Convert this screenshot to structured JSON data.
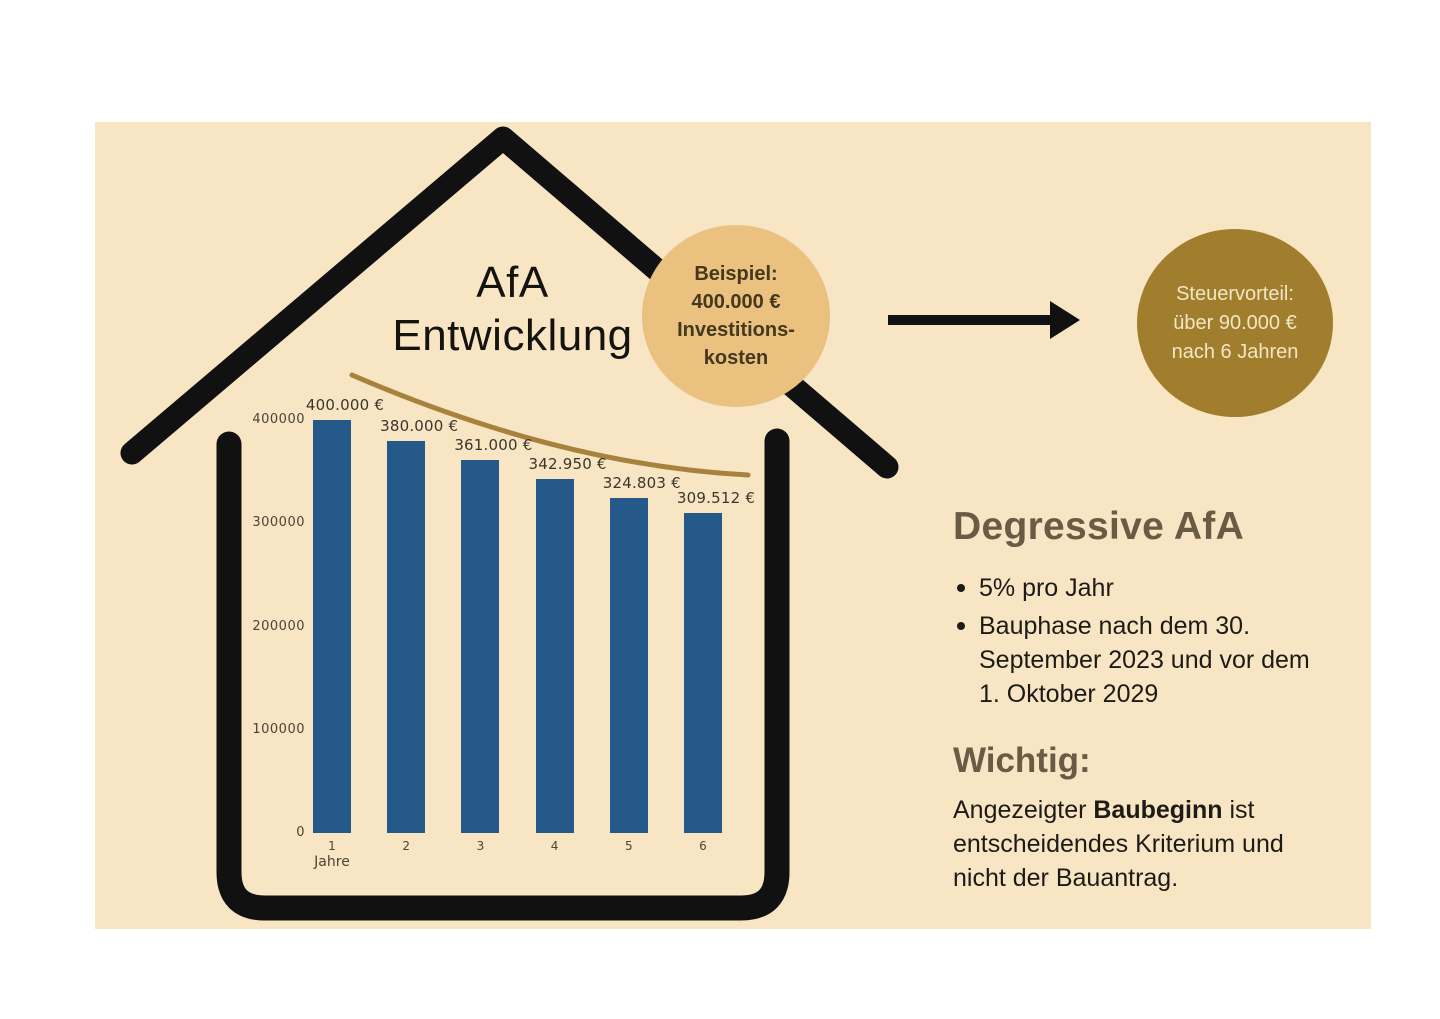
{
  "title": {
    "line1": "AfA",
    "line2": "Entwicklung"
  },
  "beispiel_bubble": {
    "lines": [
      "Beispiel:",
      "400.000 €",
      "Investitions-",
      "kosten"
    ]
  },
  "steuervorteil_bubble": {
    "lines": [
      "Steuervorteil:",
      "über 90.000 €",
      "nach 6 Jahren"
    ]
  },
  "chart_data": {
    "type": "bar",
    "title": "AfA Entwicklung",
    "categories": [
      "1",
      "2",
      "3",
      "4",
      "5",
      "6"
    ],
    "values": [
      400000,
      380000,
      361000,
      342950,
      324803,
      309512
    ],
    "bar_labels": [
      "400.000 €",
      "380.000 €",
      "361.000 €",
      "342.950 €",
      "324.803 €",
      "309.512 €"
    ],
    "xlabel": "Jahre",
    "ylabel": "",
    "ylim": [
      0,
      400000
    ],
    "yticks": [
      0,
      100000,
      200000,
      300000,
      400000
    ],
    "ytick_labels": [
      "0",
      "100000",
      "200000",
      "300000",
      "400000"
    ],
    "grid": false,
    "legend": false,
    "bar_color": "#25598a",
    "trend": {
      "shape": "exponential-decay",
      "color": "#a6823c"
    }
  },
  "info": {
    "heading": "Degressive AfA",
    "bullets": [
      {
        "lines": [
          "5% pro Jahr"
        ]
      },
      {
        "lines": [
          "Bauphase nach dem 30.",
          "September 2023 und vor dem",
          "1. Oktober 2029"
        ]
      }
    ]
  },
  "important": {
    "heading": "Wichtig:",
    "line1_pre": "Angezeigter ",
    "line1_bold": "Baubeginn",
    "line1_post": " ist",
    "line2": "entscheidendes Kriterium und",
    "line3": "nicht der Bauantrag."
  },
  "colors": {
    "panel_bg": "#f8e5c3",
    "bar": "#25598a",
    "trend_gold": "#a6823c",
    "beispiel_circle": "#eac17f",
    "beispiel_text": "#44381f",
    "steuervorteil_circle": "#a17e2d",
    "steuervorteil_text": "#f3e6c4",
    "heading_olive": "#6a5c44",
    "body_text": "#1d1b16",
    "house_outline": "#111111"
  }
}
